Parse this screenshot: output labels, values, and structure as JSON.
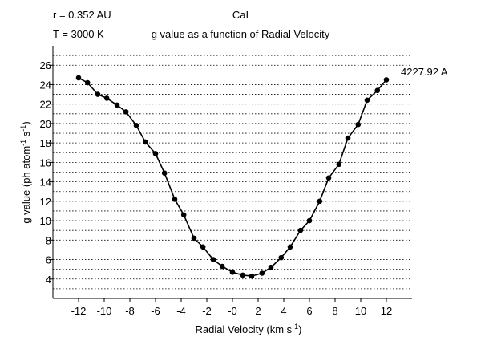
{
  "chart_data": {
    "type": "line",
    "title": "CaI",
    "subtitle": "g value as a function of Radial Velocity",
    "annotations": [
      "r = 0.352 AU",
      "T = 3000 K"
    ],
    "xlabel_main": "Radial Velocity (km  s",
    "xlabel_sup": "-1",
    "xlabel_end": ")",
    "ylabel_main": "g value (ph atom",
    "ylabel_sup1": "-1",
    "ylabel_mid": " s",
    "ylabel_sup2": "-1",
    "ylabel_end": ")",
    "xlim": [
      -14,
      14
    ],
    "ylim": [
      2,
      28
    ],
    "xticks": [
      -12,
      -10,
      -8,
      -6,
      -4,
      -2,
      0,
      2,
      4,
      6,
      8,
      10,
      12
    ],
    "xtick_labels": [
      "-12",
      "-10",
      "-8",
      "-6",
      "-4",
      "-2",
      "-0",
      "2",
      "4",
      "6",
      "8",
      "10",
      "12"
    ],
    "yticks": [
      4,
      6,
      8,
      10,
      12,
      14,
      16,
      18,
      20,
      22,
      24,
      26
    ],
    "ytick_labels": [
      "4",
      "6",
      "8",
      "10",
      "12",
      "14",
      "16",
      "18",
      "20",
      "22",
      "24",
      "26"
    ],
    "grid": true,
    "series": [
      {
        "name": "4227.92 A",
        "x": [
          -12,
          -11.3,
          -10.5,
          -9.8,
          -9,
          -8.3,
          -7.5,
          -6.8,
          -6,
          -5.3,
          -4.5,
          -3.8,
          -3,
          -2.3,
          -1.5,
          -0.8,
          0,
          0.8,
          1.5,
          2.3,
          3,
          3.8,
          4.5,
          5.3,
          6,
          6.8,
          7.5,
          8.3,
          9,
          9.8,
          10.5,
          11.3,
          12
        ],
        "values": [
          24.7,
          24.2,
          23.0,
          22.6,
          21.9,
          21.2,
          19.8,
          18.1,
          16.9,
          14.9,
          12.2,
          10.6,
          8.2,
          7.3,
          6.0,
          5.3,
          4.7,
          4.4,
          4.3,
          4.6,
          5.2,
          6.2,
          7.3,
          9.0,
          10.0,
          12.0,
          14.4,
          15.8,
          18.5,
          19.9,
          22.4,
          23.4,
          24.5
        ]
      }
    ]
  }
}
